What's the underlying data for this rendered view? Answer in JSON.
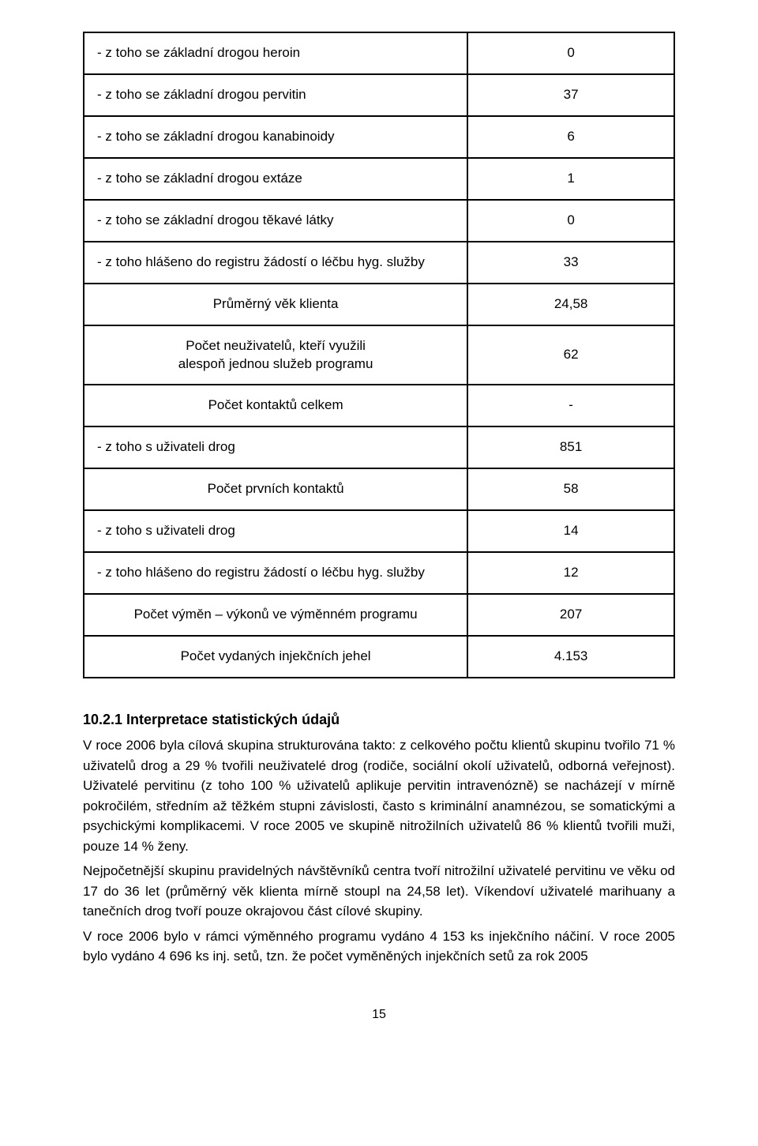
{
  "table": {
    "rows": [
      {
        "label": "- z toho se základní drogou heroin",
        "value": "0",
        "align": "left"
      },
      {
        "label": "- z toho se základní drogou pervitin",
        "value": "37",
        "align": "left"
      },
      {
        "label": "- z toho se základní drogou kanabinoidy",
        "value": "6",
        "align": "left"
      },
      {
        "label": "- z toho se základní drogou extáze",
        "value": "1",
        "align": "left"
      },
      {
        "label": "- z toho se základní drogou těkavé látky",
        "value": "0",
        "align": "left"
      },
      {
        "label": "- z toho hlášeno do registru žádostí o léčbu hyg. služby",
        "value": "33",
        "align": "left"
      },
      {
        "label": "Průměrný věk klienta",
        "value": "24,58",
        "align": "center"
      },
      {
        "label": "Počet neuživatelů, kteří využili\nalespoň jednou služeb programu",
        "value": "62",
        "align": "center"
      },
      {
        "label": "Počet kontaktů celkem",
        "value": "-",
        "align": "center"
      },
      {
        "label": "- z toho s uživateli drog",
        "value": "851",
        "align": "left"
      },
      {
        "label": "Počet prvních kontaktů",
        "value": "58",
        "align": "center"
      },
      {
        "label": "- z toho s uživateli drog",
        "value": "14",
        "align": "left"
      },
      {
        "label": "- z toho hlášeno do registru žádostí o léčbu hyg. služby",
        "value": "12",
        "align": "left"
      },
      {
        "label": "Počet výměn – výkonů ve výměnném programu",
        "value": "207",
        "align": "center"
      },
      {
        "label": "Počet vydaných injekčních jehel",
        "value": "4.153",
        "align": "center"
      }
    ]
  },
  "section": {
    "heading": "10.2.1 Interpretace statistických údajů",
    "paragraphs": [
      "V  roce 2006 byla cílová skupina strukturována takto: z celkového počtu klientů skupinu tvořilo 71 % uživatelů drog a 29 % tvořili neuživatelé drog (rodiče, sociální okolí uživatelů, odborná veřejnost). Uživatelé pervitinu (z toho 100 % uživatelů aplikuje pervitin intravenózně) se nacházejí v mírně pokročilém, středním až těžkém stupni závislosti, často s kriminální anamnézou, se somatickými a psychickými komplikacemi. V roce 2005 ve skupině nitrožilních uživatelů 86 % klientů tvořili muži, pouze 14 % ženy.",
      "Nejpočetnější skupinu pravidelných návštěvníků centra tvoří nitrožilní uživatelé pervitinu ve věku od 17 do 36 let (průměrný věk klienta mírně stoupl na 24,58 let). Víkendoví uživatelé marihuany a tanečních drog tvoří pouze okrajovou část cílové skupiny.",
      "V roce 2006 bylo v rámci výměnného programu vydáno 4 153 ks injekčního náčiní. V roce 2005 bylo vydáno 4 696 ks inj. setů, tzn. že počet vyměněných injekčních setů za rok 2005"
    ]
  },
  "page_number": "15",
  "styles": {
    "background_color": "#ffffff",
    "text_color": "#000000",
    "border_color": "#000000",
    "border_width": 2,
    "font_family": "Arial",
    "body_font_size": 17,
    "heading_font_size": 18
  }
}
